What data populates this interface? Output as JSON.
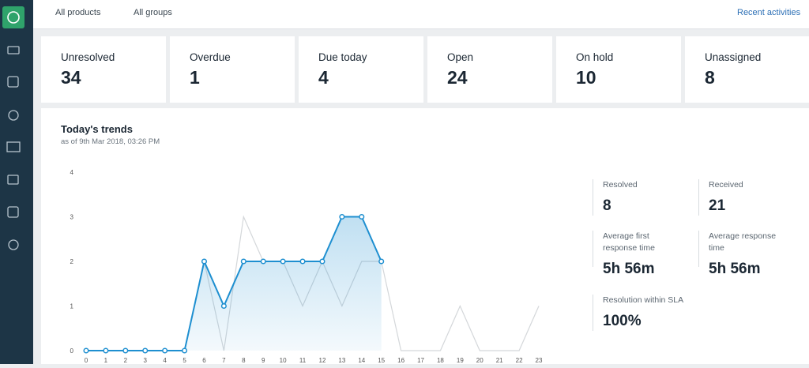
{
  "header": {
    "filters": [
      "All products",
      "All groups"
    ],
    "link": "Recent activities"
  },
  "cards": [
    {
      "label": "Unresolved",
      "value": "34"
    },
    {
      "label": "Overdue",
      "value": "1"
    },
    {
      "label": "Due today",
      "value": "4"
    },
    {
      "label": "Open",
      "value": "24"
    },
    {
      "label": "On hold",
      "value": "10"
    },
    {
      "label": "Unassigned",
      "value": "8"
    }
  ],
  "chart_data": {
    "type": "line",
    "title": "Today's trends",
    "subtitle": "as of 9th Mar 2018, 03:26 PM",
    "x": [
      0,
      1,
      2,
      3,
      4,
      5,
      6,
      7,
      8,
      9,
      10,
      11,
      12,
      13,
      14,
      15,
      16,
      17,
      18,
      19,
      20,
      21,
      22,
      23
    ],
    "series": [
      {
        "color": "#d4d7da",
        "values": [
          0,
          0,
          0,
          0,
          0,
          0,
          2,
          0,
          3,
          2,
          2,
          1,
          2,
          1,
          2,
          2,
          0,
          0,
          0,
          1,
          0,
          0,
          0,
          1
        ]
      },
      {
        "color": "#1e8fd0",
        "values": [
          0,
          0,
          0,
          0,
          0,
          0,
          2,
          1,
          2,
          2,
          2,
          2,
          2,
          3,
          3,
          2,
          null,
          null,
          null,
          null,
          null,
          null,
          null,
          null
        ]
      }
    ],
    "xlim": [
      0,
      23
    ],
    "xticks": [
      0,
      1,
      2,
      3,
      4,
      5,
      6,
      7,
      8,
      9,
      10,
      11,
      12,
      13,
      14,
      15,
      16,
      17,
      18,
      19,
      20,
      21,
      22,
      23
    ],
    "ylim": [
      0,
      4
    ],
    "yticks": [
      0,
      1,
      2,
      3,
      4
    ],
    "grid": false
  },
  "stats": [
    {
      "label": "Resolved",
      "value": "8"
    },
    {
      "label": "Received",
      "value": "21"
    },
    {
      "label": "Average first response time",
      "value": "5h 56m"
    },
    {
      "label": "Average response time",
      "value": "5h 56m"
    },
    {
      "label": "Resolution within SLA",
      "value": "100%"
    }
  ]
}
